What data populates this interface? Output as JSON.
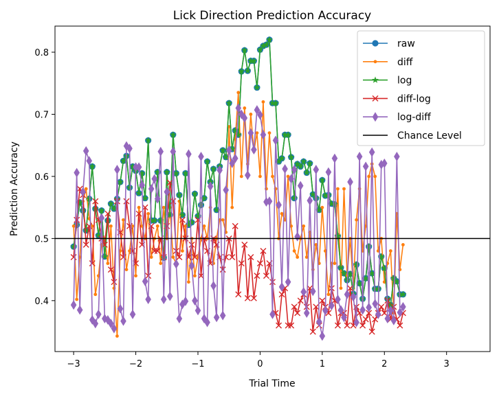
{
  "chart_data": {
    "type": "line",
    "title": "Lick Direction Prediction Accuracy",
    "xlabel": "Trial Time",
    "ylabel": "Prediction Accuracy",
    "xlim": [
      -3.3,
      3.7
    ],
    "ylim": [
      0.318,
      0.842
    ],
    "xticks": [
      -3,
      -2,
      -1,
      0,
      1,
      2,
      3
    ],
    "yticks": [
      0.4,
      0.5,
      0.6,
      0.7,
      0.8
    ],
    "xtick_labels": [
      "−3",
      "−2",
      "−1",
      "0",
      "1",
      "2",
      "3"
    ],
    "ytick_labels": [
      "0.4",
      "0.5",
      "0.6",
      "0.7",
      "0.8"
    ],
    "legend_position": "top-right",
    "chance_level": 0.5,
    "x_start": -3.0,
    "x_step": 0.05,
    "series": [
      {
        "name": "raw",
        "color": "#1f77b4",
        "marker": "circle",
        "values": [
          0.487,
          0.522,
          0.558,
          0.545,
          0.513,
          0.564,
          0.616,
          0.548,
          0.505,
          0.545,
          0.471,
          0.529,
          0.556,
          0.548,
          0.564,
          0.591,
          0.625,
          0.633,
          0.582,
          0.616,
          0.609,
          0.573,
          0.605,
          0.565,
          0.658,
          0.529,
          0.529,
          0.607,
          0.529,
          0.469,
          0.607,
          0.538,
          0.667,
          0.605,
          0.57,
          0.538,
          0.605,
          0.522,
          0.526,
          0.572,
          0.536,
          0.554,
          0.565,
          0.624,
          0.591,
          0.612,
          0.546,
          0.616,
          0.642,
          0.631,
          0.718,
          0.644,
          0.674,
          0.667,
          0.769,
          0.803,
          0.77,
          0.786,
          0.786,
          0.743,
          0.804,
          0.81,
          0.812,
          0.82,
          0.718,
          0.718,
          0.624,
          0.629,
          0.667,
          0.667,
          0.631,
          0.565,
          0.62,
          0.616,
          0.624,
          0.606,
          0.621,
          0.571,
          0.565,
          0.546,
          0.594,
          0.569,
          0.57,
          0.556,
          0.555,
          0.504,
          0.453,
          0.444,
          0.433,
          0.443,
          0.411,
          0.458,
          0.428,
          0.403,
          0.436,
          0.487,
          0.444,
          0.419,
          0.419,
          0.471,
          0.452,
          0.403,
          0.393,
          0.436,
          0.431,
          0.41,
          0.41
        ]
      },
      {
        "name": "diff",
        "color": "#ff7f0e",
        "marker": "point",
        "values": [
          0.52,
          0.402,
          0.47,
          0.56,
          0.58,
          0.532,
          0.52,
          0.41,
          0.44,
          0.49,
          0.5,
          0.46,
          0.52,
          0.42,
          0.343,
          0.48,
          0.53,
          0.45,
          0.48,
          0.52,
          0.44,
          0.55,
          0.52,
          0.5,
          0.54,
          0.47,
          0.5,
          0.52,
          0.46,
          0.55,
          0.5,
          0.55,
          0.47,
          0.46,
          0.56,
          0.48,
          0.52,
          0.43,
          0.5,
          0.44,
          0.47,
          0.5,
          0.52,
          0.5,
          0.55,
          0.46,
          0.5,
          0.53,
          0.53,
          0.51,
          0.68,
          0.55,
          0.66,
          0.735,
          0.6,
          0.71,
          0.62,
          0.7,
          0.64,
          0.67,
          0.6,
          0.72,
          0.58,
          0.67,
          0.6,
          0.58,
          0.5,
          0.54,
          0.53,
          0.6,
          0.52,
          0.48,
          0.47,
          0.5,
          0.52,
          0.47,
          0.51,
          0.45,
          0.49,
          0.46,
          0.55,
          0.48,
          0.41,
          0.46,
          0.46,
          0.58,
          0.42,
          0.58,
          0.44,
          0.5,
          0.42,
          0.53,
          0.58,
          0.48,
          0.52,
          0.6,
          0.62,
          0.6,
          0.48,
          0.5,
          0.43,
          0.46,
          0.48,
          0.38,
          0.54,
          0.45,
          0.49
        ]
      },
      {
        "name": "log",
        "color": "#2ca02c",
        "marker": "star",
        "values": [
          0.487,
          0.522,
          0.558,
          0.545,
          0.513,
          0.564,
          0.616,
          0.548,
          0.505,
          0.545,
          0.471,
          0.529,
          0.556,
          0.548,
          0.564,
          0.591,
          0.625,
          0.633,
          0.582,
          0.616,
          0.609,
          0.573,
          0.605,
          0.565,
          0.658,
          0.529,
          0.529,
          0.607,
          0.529,
          0.469,
          0.607,
          0.538,
          0.667,
          0.605,
          0.57,
          0.538,
          0.605,
          0.522,
          0.526,
          0.572,
          0.536,
          0.554,
          0.565,
          0.624,
          0.591,
          0.612,
          0.546,
          0.616,
          0.642,
          0.631,
          0.718,
          0.644,
          0.674,
          0.667,
          0.769,
          0.803,
          0.77,
          0.786,
          0.786,
          0.743,
          0.804,
          0.81,
          0.812,
          0.82,
          0.718,
          0.718,
          0.624,
          0.629,
          0.667,
          0.667,
          0.631,
          0.565,
          0.62,
          0.616,
          0.624,
          0.606,
          0.621,
          0.571,
          0.565,
          0.546,
          0.594,
          0.569,
          0.57,
          0.556,
          0.555,
          0.504,
          0.453,
          0.444,
          0.433,
          0.443,
          0.411,
          0.458,
          0.428,
          0.403,
          0.436,
          0.487,
          0.444,
          0.419,
          0.419,
          0.471,
          0.452,
          0.403,
          0.393,
          0.436,
          0.431,
          0.41,
          0.41
        ]
      },
      {
        "name": "diff-log",
        "color": "#d62728",
        "marker": "x",
        "values": [
          0.47,
          0.53,
          0.58,
          0.57,
          0.49,
          0.52,
          0.46,
          0.56,
          0.53,
          0.5,
          0.49,
          0.54,
          0.45,
          0.43,
          0.56,
          0.51,
          0.47,
          0.56,
          0.52,
          0.48,
          0.46,
          0.54,
          0.49,
          0.55,
          0.44,
          0.52,
          0.48,
          0.48,
          0.5,
          0.47,
          0.52,
          0.59,
          0.56,
          0.48,
          0.47,
          0.53,
          0.5,
          0.47,
          0.49,
          0.47,
          0.53,
          0.44,
          0.5,
          0.48,
          0.46,
          0.5,
          0.49,
          0.47,
          0.45,
          0.47,
          0.5,
          0.47,
          0.52,
          0.41,
          0.46,
          0.49,
          0.404,
          0.47,
          0.404,
          0.44,
          0.46,
          0.48,
          0.44,
          0.46,
          0.43,
          0.38,
          0.36,
          0.41,
          0.42,
          0.36,
          0.36,
          0.39,
          0.38,
          0.4,
          0.41,
          0.39,
          0.42,
          0.35,
          0.39,
          0.36,
          0.4,
          0.39,
          0.38,
          0.42,
          0.4,
          0.36,
          0.38,
          0.38,
          0.36,
          0.42,
          0.36,
          0.39,
          0.38,
          0.36,
          0.37,
          0.38,
          0.35,
          0.37,
          0.38,
          0.39,
          0.38,
          0.4,
          0.37,
          0.39,
          0.37,
          0.36,
          0.38
        ]
      },
      {
        "name": "log-diff",
        "color": "#9467bd",
        "marker": "diamond",
        "values": [
          0.393,
          0.606,
          0.385,
          0.575,
          0.641,
          0.625,
          0.369,
          0.363,
          0.378,
          0.533,
          0.371,
          0.369,
          0.363,
          0.355,
          0.611,
          0.387,
          0.367,
          0.649,
          0.645,
          0.378,
          0.615,
          0.615,
          0.586,
          0.431,
          0.402,
          0.58,
          0.596,
          0.564,
          0.64,
          0.402,
          0.575,
          0.407,
          0.64,
          0.459,
          0.371,
          0.394,
          0.399,
          0.636,
          0.456,
          0.4,
          0.384,
          0.632,
          0.371,
          0.365,
          0.584,
          0.424,
          0.373,
          0.61,
          0.376,
          0.578,
          0.642,
          0.621,
          0.629,
          0.71,
          0.7,
          0.694,
          0.602,
          0.67,
          0.643,
          0.707,
          0.699,
          0.667,
          0.559,
          0.56,
          0.378,
          0.658,
          0.554,
          0.422,
          0.612,
          0.43,
          0.596,
          0.611,
          0.503,
          0.585,
          0.414,
          0.38,
          0.561,
          0.415,
          0.611,
          0.366,
          0.343,
          0.384,
          0.607,
          0.392,
          0.629,
          0.402,
          0.385,
          0.373,
          0.41,
          0.591,
          0.406,
          0.365,
          0.632,
          0.385,
          0.616,
          0.389,
          0.639,
          0.395,
          0.378,
          0.619,
          0.621,
          0.371,
          0.384,
          0.368,
          0.632,
          0.381,
          0.39
        ]
      }
    ],
    "reference_lines": [
      {
        "name": "Chance Level",
        "color": "#000000",
        "y": 0.5
      }
    ]
  }
}
